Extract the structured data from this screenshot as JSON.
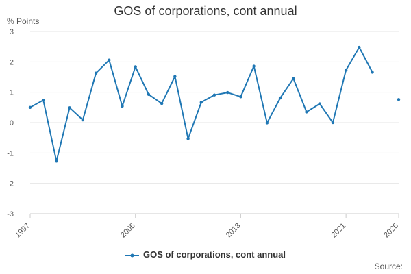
{
  "chart_data": {
    "type": "line",
    "title": "GOS of corporations, cont annual",
    "ylabel": "% Points",
    "xlabel": "",
    "ylim": [
      -3,
      3
    ],
    "y_ticks": [
      3,
      2,
      1,
      0,
      -1,
      -2,
      -3
    ],
    "y_tick_labels": [
      "3",
      "2",
      "1",
      "0",
      "-1",
      "-2",
      "-3"
    ],
    "x_range": [
      1997,
      2025
    ],
    "x_tick_labels": [
      "1997",
      "2005",
      "2013",
      "2021",
      "2025"
    ],
    "grid": "horizontal",
    "legend_position": "bottom",
    "series": [
      {
        "name": "GOS of corporations, cont annual",
        "color": "#1f77b4",
        "points": [
          {
            "x": 1997,
            "y": 0.5
          },
          {
            "x": 1998,
            "y": 0.74
          },
          {
            "x": 1999,
            "y": -1.27
          },
          {
            "x": 2000,
            "y": 0.49
          },
          {
            "x": 2001,
            "y": 0.09
          },
          {
            "x": 2002,
            "y": 1.63
          },
          {
            "x": 2003,
            "y": 2.06
          },
          {
            "x": 2004,
            "y": 0.54
          },
          {
            "x": 2005,
            "y": 1.84
          },
          {
            "x": 2006,
            "y": 0.93
          },
          {
            "x": 2007,
            "y": 0.63
          },
          {
            "x": 2008,
            "y": 1.52
          },
          {
            "x": 2009,
            "y": -0.53
          },
          {
            "x": 2010,
            "y": 0.67
          },
          {
            "x": 2011,
            "y": 0.91
          },
          {
            "x": 2012,
            "y": 0.99
          },
          {
            "x": 2013,
            "y": 0.85
          },
          {
            "x": 2014,
            "y": 1.86
          },
          {
            "x": 2015,
            "y": -0.01
          },
          {
            "x": 2016,
            "y": 0.81
          },
          {
            "x": 2017,
            "y": 1.45
          },
          {
            "x": 2018,
            "y": 0.35
          },
          {
            "x": 2019,
            "y": 0.62
          },
          {
            "x": 2020,
            "y": 0.0
          },
          {
            "x": 2021,
            "y": 1.73
          },
          {
            "x": 2022,
            "y": 2.48
          },
          {
            "x": 2023,
            "y": 1.66
          },
          {
            "x": 2024,
            "y": null
          },
          {
            "x": 2025,
            "y": 0.76
          }
        ]
      }
    ],
    "legend_label": "GOS of corporations, cont annual",
    "source_text": "Source:"
  }
}
